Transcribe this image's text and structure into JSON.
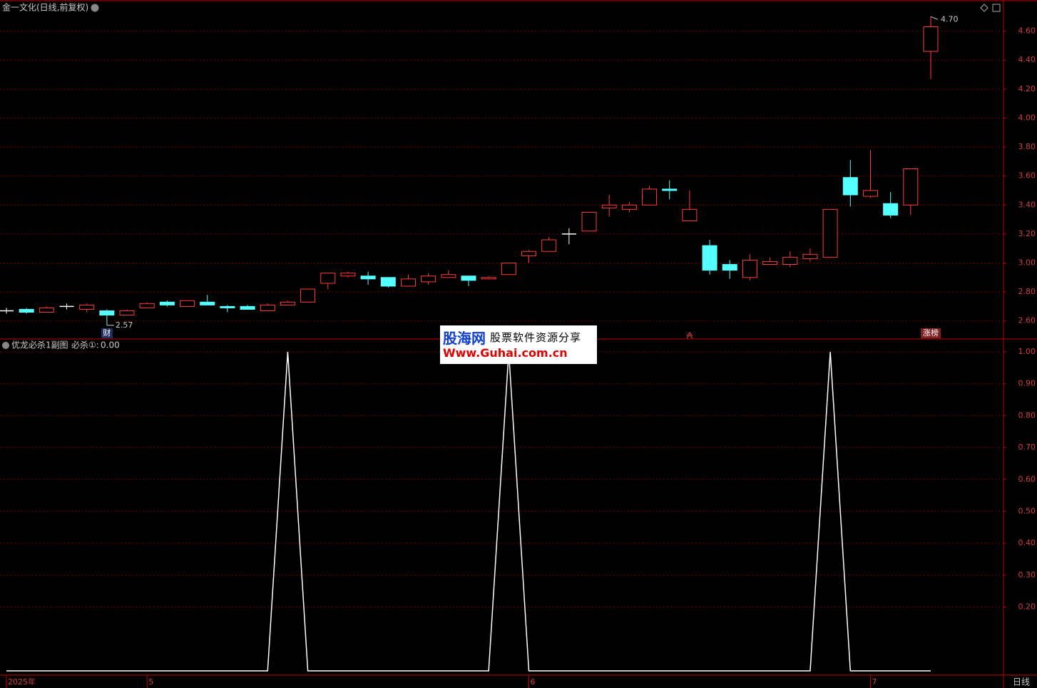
{
  "chart_data": [
    {
      "type": "candlestick",
      "title": "金一文化(日线,前复权)",
      "categories": [
        "2025年",
        null,
        null,
        null,
        null,
        null,
        null,
        "5",
        null,
        null,
        null,
        null,
        null,
        null,
        null,
        null,
        null,
        null,
        null,
        null,
        null,
        null,
        null,
        null,
        null,
        null,
        "6",
        null,
        null,
        null,
        null,
        null,
        null,
        null,
        null,
        null,
        null,
        null,
        null,
        null,
        null,
        null,
        null,
        "7",
        null,
        null,
        null
      ],
      "open": [
        2.67,
        2.68,
        2.66,
        2.7,
        2.68,
        2.67,
        2.64,
        2.69,
        2.73,
        2.7,
        2.73,
        2.7,
        2.7,
        2.67,
        2.71,
        2.73,
        2.86,
        2.91,
        2.91,
        2.9,
        2.84,
        2.87,
        2.9,
        2.91,
        2.89,
        2.92,
        3.05,
        3.08,
        3.2,
        3.22,
        3.38,
        3.37,
        3.4,
        3.51,
        3.29,
        3.12,
        2.99,
        2.9,
        2.99,
        2.99,
        3.03,
        3.04,
        3.59,
        3.46,
        3.41,
        3.4,
        4.46
      ],
      "high": [
        2.69,
        2.69,
        2.7,
        2.72,
        2.72,
        2.68,
        2.68,
        2.73,
        2.74,
        2.74,
        2.78,
        2.71,
        2.71,
        2.72,
        2.74,
        2.82,
        2.93,
        2.94,
        2.94,
        2.9,
        2.92,
        2.93,
        2.95,
        2.91,
        2.91,
        3.0,
        3.09,
        3.18,
        3.24,
        3.35,
        3.47,
        3.42,
        3.53,
        3.57,
        3.5,
        3.16,
        3.02,
        3.06,
        3.04,
        3.08,
        3.1,
        3.37,
        3.71,
        3.78,
        3.49,
        3.65,
        4.7
      ],
      "low": [
        2.65,
        2.65,
        2.66,
        2.68,
        2.66,
        2.57,
        2.64,
        2.69,
        2.7,
        2.7,
        2.71,
        2.66,
        2.68,
        2.67,
        2.71,
        2.73,
        2.82,
        2.9,
        2.85,
        2.83,
        2.84,
        2.85,
        2.9,
        2.84,
        2.89,
        2.92,
        3.0,
        3.08,
        3.13,
        3.22,
        3.32,
        3.35,
        3.4,
        3.44,
        3.29,
        2.92,
        2.89,
        2.88,
        2.99,
        2.97,
        3.01,
        3.04,
        3.39,
        3.45,
        3.31,
        3.33,
        4.27
      ],
      "close": [
        2.67,
        2.66,
        2.69,
        2.7,
        2.71,
        2.64,
        2.67,
        2.72,
        2.71,
        2.74,
        2.71,
        2.69,
        2.68,
        2.71,
        2.73,
        2.82,
        2.93,
        2.93,
        2.89,
        2.84,
        2.89,
        2.91,
        2.92,
        2.88,
        2.9,
        3.0,
        3.08,
        3.16,
        3.2,
        3.35,
        3.4,
        3.4,
        3.51,
        3.5,
        3.37,
        2.95,
        2.95,
        3.02,
        3.01,
        3.04,
        3.06,
        3.37,
        3.47,
        3.5,
        3.33,
        3.65,
        4.63
      ],
      "up_color": "#ff3c3c",
      "down_color": "#54ffff",
      "flat_color": "#ffffff",
      "low_label": {
        "index": 5,
        "label": "2.57"
      },
      "high_label": {
        "index": 46,
        "label": "4.70"
      },
      "markers": [
        {
          "index": 5,
          "text": "财"
        },
        {
          "index": 46,
          "text": "涨榜"
        }
      ],
      "ylim": [
        2.5,
        4.8
      ],
      "yticks": [
        {
          "value": 2.6,
          "label": "2.60"
        },
        {
          "value": 2.8,
          "label": "2.80"
        },
        {
          "value": 3.0,
          "label": "3.00"
        },
        {
          "value": 3.2,
          "label": "3.20"
        },
        {
          "value": 3.4,
          "label": "3.40"
        },
        {
          "value": 3.6,
          "label": "3.60"
        },
        {
          "value": 3.8,
          "label": "3.80"
        },
        {
          "value": 4.0,
          "label": "4.00"
        },
        {
          "value": 4.2,
          "label": "4.20"
        },
        {
          "value": 4.4,
          "label": "4.40"
        },
        {
          "value": 4.6,
          "label": "4.60"
        }
      ],
      "grid": true
    },
    {
      "type": "line",
      "title": "优龙必杀1副图",
      "series": [
        {
          "name": "必杀①:",
          "color": "#ffffff",
          "last_label": "0.00",
          "values": [
            0,
            0,
            0,
            0,
            0,
            0,
            0,
            0,
            0,
            0,
            0,
            0,
            0,
            0,
            1,
            0,
            0,
            0,
            0,
            0,
            0,
            0,
            0,
            0,
            0,
            1,
            0,
            0,
            0,
            0,
            0,
            0,
            0,
            0,
            0,
            0,
            0,
            0,
            0,
            0,
            0,
            1,
            0,
            0,
            0,
            0,
            0
          ]
        }
      ],
      "ylim": [
        0,
        1.02
      ],
      "yticks": [
        {
          "value": 0.2,
          "label": "0.20"
        },
        {
          "value": 0.3,
          "label": "0.30"
        },
        {
          "value": 0.4,
          "label": "0.40"
        },
        {
          "value": 0.5,
          "label": "0.50"
        },
        {
          "value": 0.6,
          "label": "0.60"
        },
        {
          "value": 0.7,
          "label": "0.70"
        },
        {
          "value": 0.8,
          "label": "0.80"
        },
        {
          "value": 0.9,
          "label": "0.90"
        },
        {
          "value": 1.0,
          "label": "1.00"
        }
      ],
      "grid": true
    }
  ],
  "period": "日线",
  "watermark": {
    "site": "股海网",
    "slogan": "股票软件资源分享",
    "url": "Www.Guhai.com.cn"
  }
}
